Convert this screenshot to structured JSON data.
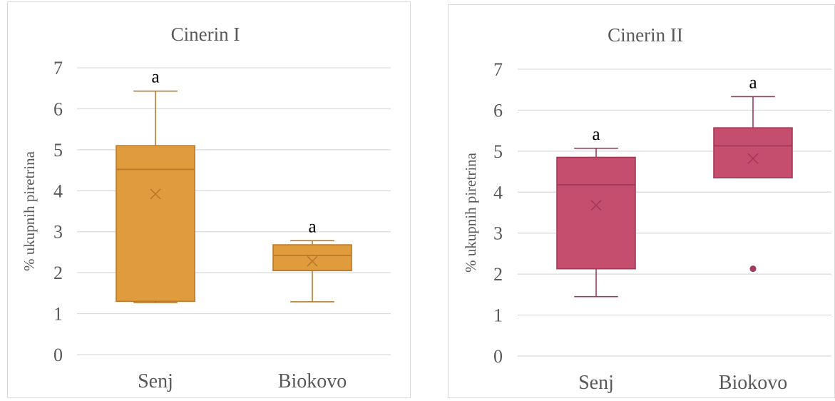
{
  "colors": {
    "chart1": "#e09b3d",
    "chart1_line": "#b87a2a",
    "chart2": "#c54d6d",
    "chart2_line": "#a23b58",
    "grid": "#d9d9d9",
    "text": "#595959"
  },
  "chart_data": [
    {
      "type": "box",
      "title": "Cinerin I",
      "ylabel": "% ukupnih piretrina",
      "ylim": [
        0,
        7
      ],
      "yticks": [
        "0",
        "1",
        "2",
        "3",
        "4",
        "5",
        "6",
        "7"
      ],
      "categories": [
        "Senj",
        "Biokovo"
      ],
      "series": [
        {
          "boxes": [
            {
              "category": "Senj",
              "min": 1.27,
              "q1": 1.3,
              "median": 4.52,
              "q3": 5.1,
              "max": 6.43,
              "mean": 3.92,
              "outliers": [],
              "letter": "a"
            },
            {
              "category": "Biokovo",
              "min": 1.29,
              "q1": 2.05,
              "median": 2.42,
              "q3": 2.68,
              "max": 2.78,
              "mean": 2.28,
              "outliers": [],
              "letter": "a"
            }
          ]
        }
      ],
      "grid": true,
      "legend": "none"
    },
    {
      "type": "box",
      "title": "Cinerin II",
      "ylabel": "% ukupnih piretrina",
      "ylim": [
        0,
        7
      ],
      "yticks": [
        "0",
        "1",
        "2",
        "3",
        "4",
        "5",
        "6",
        "7"
      ],
      "categories": [
        "Senj",
        "Biokovo"
      ],
      "series": [
        {
          "boxes": [
            {
              "category": "Senj",
              "min": 1.45,
              "q1": 2.13,
              "median": 4.18,
              "q3": 4.85,
              "max": 5.07,
              "mean": 3.68,
              "outliers": [],
              "letter": "a"
            },
            {
              "category": "Biokovo",
              "min": 4.35,
              "q1": 4.35,
              "median": 5.13,
              "q3": 5.57,
              "max": 6.33,
              "mean": 4.82,
              "outliers": [
                2.13
              ],
              "letter": "a"
            }
          ]
        }
      ],
      "grid": true,
      "legend": "none"
    }
  ]
}
